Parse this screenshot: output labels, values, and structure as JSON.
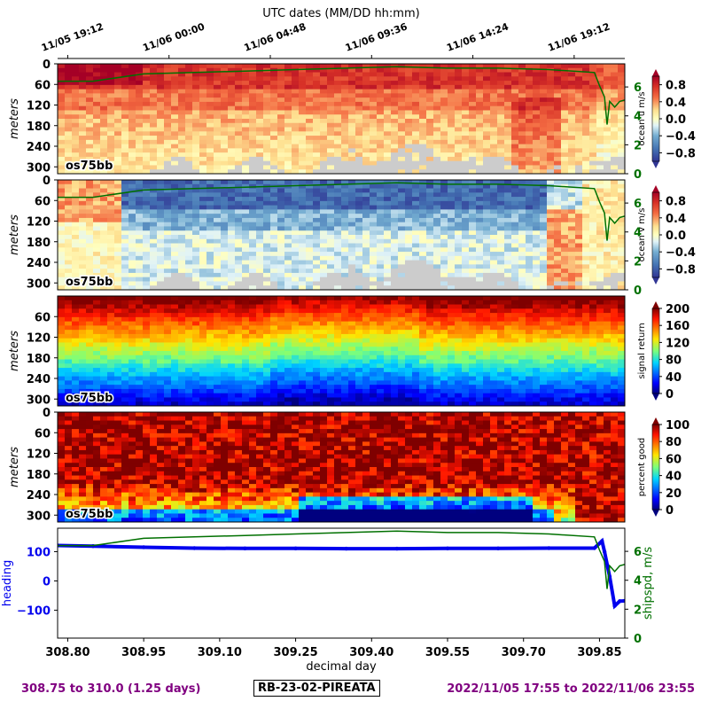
{
  "top_axis": {
    "title": "UTC dates (MM/DD hh:mm)",
    "ticks": [
      "11/05 19:12",
      "11/06 00:00",
      "11/06 04:48",
      "11/06 09:36",
      "11/06 14:24",
      "11/06 19:12"
    ]
  },
  "footer": {
    "left": "308.75 to 310.0 (1.25 days)",
    "center": "RB-23-02-PIREATA",
    "right": "2022/11/05 17:55 to 2022/11/06 23:55"
  },
  "colors": {
    "shipspd": "#007000",
    "heading": "#0000ee",
    "footer_text": "#800080",
    "missing": "#cccccc"
  },
  "chart_data": [
    {
      "type": "heatmap",
      "variable": "ocean u",
      "ylabel": "meters",
      "yticks": [
        "0",
        "60",
        "120",
        "180",
        "240",
        "300"
      ],
      "ylim": [
        320,
        0
      ],
      "instrument_label": "os75bb",
      "colorbar": {
        "label": "ocean u m/s",
        "ticks": [
          "0.8",
          "0.4",
          "0.0",
          "−0.4",
          "−0.8"
        ],
        "range": [
          -1.0,
          1.0
        ],
        "colormap": "RdYlBu_r"
      },
      "overlay": {
        "name": "shipspd",
        "right_ticks": [
          "6",
          "4",
          "2",
          "0"
        ]
      }
    },
    {
      "type": "heatmap",
      "variable": "ocean v",
      "ylabel": "meters",
      "yticks": [
        "0",
        "60",
        "120",
        "180",
        "240",
        "300"
      ],
      "ylim": [
        320,
        0
      ],
      "instrument_label": "os75bb",
      "colorbar": {
        "label": "ocean v m/s",
        "ticks": [
          "0.8",
          "0.4",
          "0.0",
          "−0.4",
          "−0.8"
        ],
        "range": [
          -1.0,
          1.0
        ],
        "colormap": "RdYlBu_r"
      },
      "overlay": {
        "name": "shipspd",
        "right_ticks": [
          "6",
          "4",
          "2",
          "0"
        ]
      }
    },
    {
      "type": "heatmap",
      "variable": "signal return",
      "ylabel": "meters",
      "yticks": [
        "60",
        "120",
        "180",
        "240",
        "300"
      ],
      "ylim": [
        320,
        0
      ],
      "instrument_label": "os75bb",
      "colorbar": {
        "label": "signal return",
        "ticks": [
          "200",
          "160",
          "120",
          "80",
          "40",
          "0"
        ],
        "range": [
          0,
          200
        ],
        "colormap": "jet"
      }
    },
    {
      "type": "heatmap",
      "variable": "percent good",
      "ylabel": "meters",
      "yticks": [
        "0",
        "60",
        "120",
        "180",
        "240",
        "300"
      ],
      "ylim": [
        320,
        0
      ],
      "instrument_label": "os75bb",
      "colorbar": {
        "label": "percent good",
        "ticks": [
          "100",
          "80",
          "60",
          "40",
          "20",
          "0"
        ],
        "range": [
          0,
          100
        ],
        "colormap": "jet"
      }
    },
    {
      "type": "line",
      "xlabel": "decimal day",
      "xticks": [
        "308.80",
        "308.95",
        "309.10",
        "309.25",
        "309.40",
        "309.55",
        "309.70",
        "309.85"
      ],
      "xlim": [
        308.78,
        309.9
      ],
      "left_axis": {
        "label": "heading",
        "ticks": [
          "100",
          "0",
          "−100"
        ],
        "range": [
          -195,
          180
        ]
      },
      "right_axis": {
        "label": "shipspd, m/s",
        "ticks": [
          "6",
          "4",
          "2",
          "0"
        ],
        "range": [
          0,
          7.6
        ]
      },
      "series": [
        {
          "name": "heading",
          "axis": "left",
          "x": [
            308.78,
            308.85,
            308.95,
            309.05,
            309.15,
            309.25,
            309.35,
            309.45,
            309.55,
            309.65,
            309.75,
            309.84,
            309.855,
            309.86,
            309.87,
            309.88,
            309.89,
            309.9
          ],
          "y": [
            121,
            119,
            115,
            112,
            111,
            111,
            110,
            110,
            111,
            111,
            112,
            112,
            136,
            100,
            15,
            -85,
            -69,
            -68
          ]
        },
        {
          "name": "shipspd",
          "axis": "right",
          "x": [
            308.78,
            308.85,
            308.95,
            309.05,
            309.15,
            309.25,
            309.35,
            309.45,
            309.55,
            309.65,
            309.75,
            309.84,
            309.85,
            309.86,
            309.865,
            309.87,
            309.88,
            309.89,
            309.9
          ],
          "y": [
            6.4,
            6.4,
            6.9,
            7.0,
            7.1,
            7.2,
            7.3,
            7.4,
            7.3,
            7.3,
            7.2,
            7.0,
            6.1,
            5.3,
            3.4,
            5.0,
            4.6,
            5.0,
            5.1
          ]
        }
      ]
    }
  ]
}
